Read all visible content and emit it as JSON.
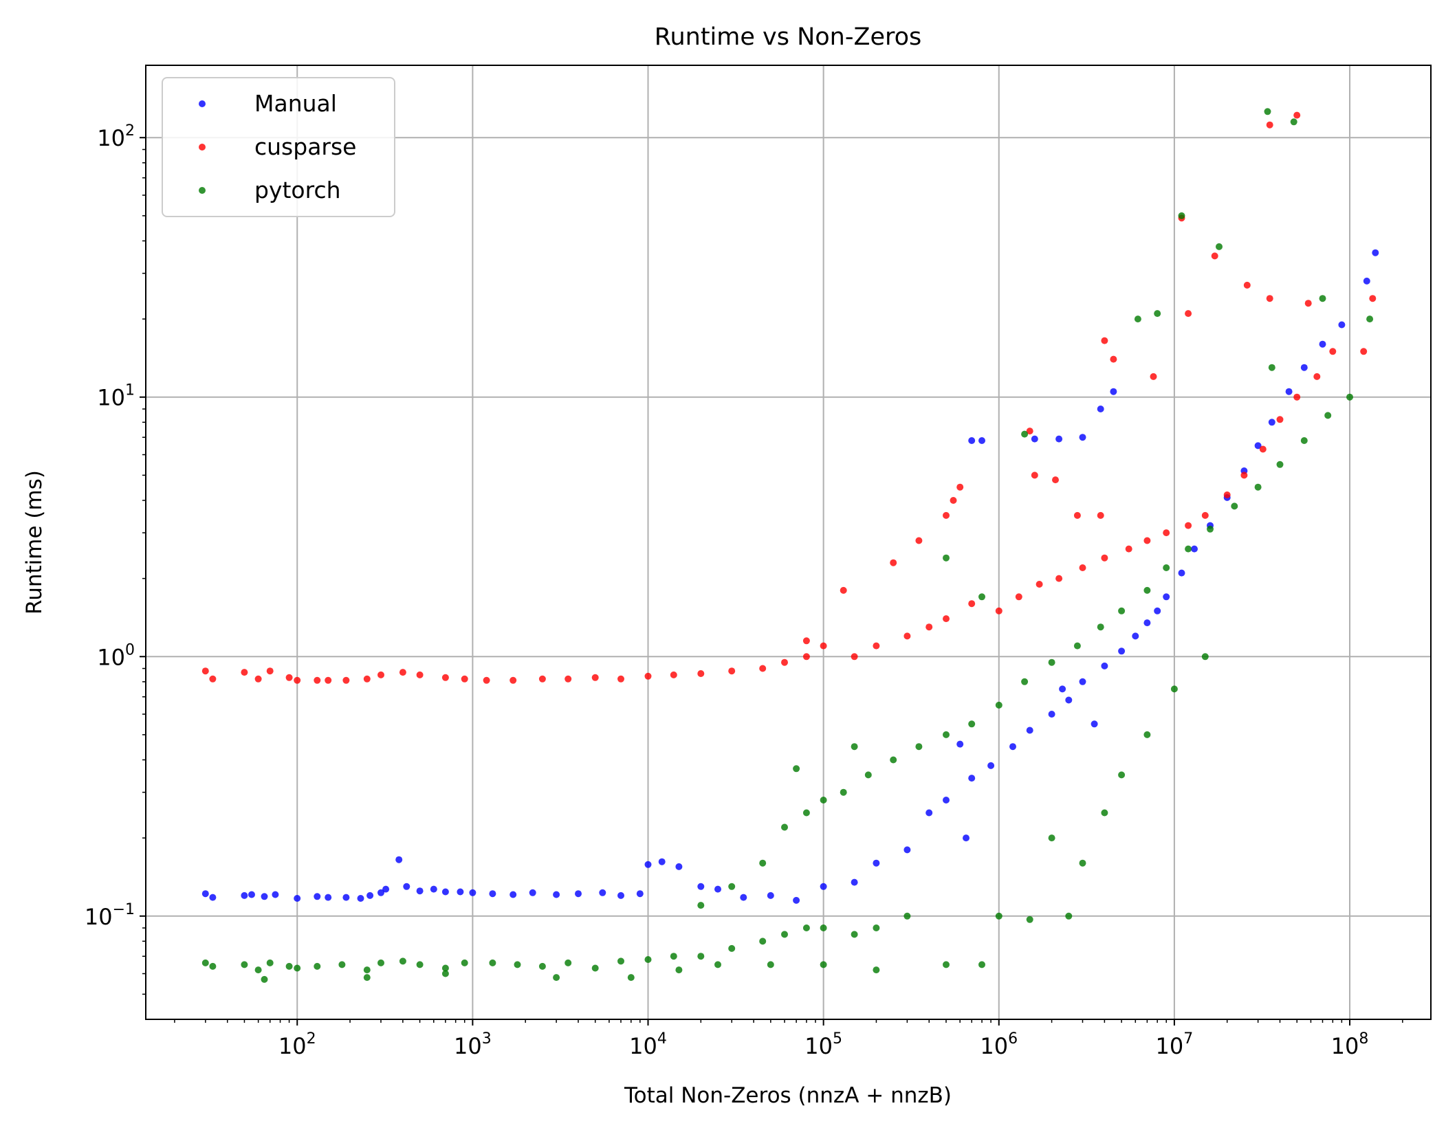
{
  "chart_data": {
    "type": "scatter",
    "title": "Runtime vs Non-Zeros",
    "xlabel": "Total Non-Zeros (nnzA + nnzB)",
    "ylabel": "Runtime (ms)",
    "xscale": "log",
    "yscale": "log",
    "xlim": [
      13.7,
      290000000
    ],
    "ylim": [
      0.04,
      190
    ],
    "xticks": [
      {
        "value": 100,
        "base": "10",
        "exp": "2"
      },
      {
        "value": 1000,
        "base": "10",
        "exp": "3"
      },
      {
        "value": 10000,
        "base": "10",
        "exp": "4"
      },
      {
        "value": 100000,
        "base": "10",
        "exp": "5"
      },
      {
        "value": 1000000,
        "base": "10",
        "exp": "6"
      },
      {
        "value": 10000000,
        "base": "10",
        "exp": "7"
      },
      {
        "value": 100000000,
        "base": "10",
        "exp": "8"
      }
    ],
    "yticks": [
      {
        "value": 0.1,
        "base": "10",
        "exp": "−1"
      },
      {
        "value": 1,
        "base": "10",
        "exp": "0"
      },
      {
        "value": 10,
        "base": "10",
        "exp": "1"
      },
      {
        "value": 100,
        "base": "10",
        "exp": "2"
      }
    ],
    "grid": true,
    "legend_position": "upper left",
    "series": [
      {
        "name": "Manual",
        "color": "#0000ff",
        "points": [
          [
            30,
            0.122
          ],
          [
            33,
            0.118
          ],
          [
            50,
            0.12
          ],
          [
            55,
            0.121
          ],
          [
            65,
            0.119
          ],
          [
            75,
            0.121
          ],
          [
            100,
            0.117
          ],
          [
            130,
            0.119
          ],
          [
            150,
            0.118
          ],
          [
            190,
            0.118
          ],
          [
            230,
            0.117
          ],
          [
            260,
            0.12
          ],
          [
            300,
            0.123
          ],
          [
            320,
            0.127
          ],
          [
            380,
            0.165
          ],
          [
            420,
            0.13
          ],
          [
            500,
            0.125
          ],
          [
            600,
            0.127
          ],
          [
            700,
            0.124
          ],
          [
            850,
            0.124
          ],
          [
            1000,
            0.123
          ],
          [
            1300,
            0.122
          ],
          [
            1700,
            0.121
          ],
          [
            2200,
            0.123
          ],
          [
            3000,
            0.121
          ],
          [
            4000,
            0.122
          ],
          [
            5500,
            0.123
          ],
          [
            7000,
            0.12
          ],
          [
            9000,
            0.122
          ],
          [
            10000,
            0.158
          ],
          [
            12000,
            0.162
          ],
          [
            15000,
            0.155
          ],
          [
            20000,
            0.13
          ],
          [
            25000,
            0.127
          ],
          [
            35000,
            0.118
          ],
          [
            50000,
            0.12
          ],
          [
            70000,
            0.115
          ],
          [
            100000,
            0.13
          ],
          [
            150000,
            0.135
          ],
          [
            200000,
            0.16
          ],
          [
            300000,
            0.18
          ],
          [
            400000,
            0.25
          ],
          [
            500000,
            0.28
          ],
          [
            700000,
            0.34
          ],
          [
            900000,
            0.38
          ],
          [
            1200000,
            0.45
          ],
          [
            1500000,
            0.52
          ],
          [
            2000000,
            0.6
          ],
          [
            2500000,
            0.68
          ],
          [
            3000000,
            0.8
          ],
          [
            4000000,
            0.92
          ],
          [
            5000000,
            1.05
          ],
          [
            6000000,
            1.2
          ],
          [
            7000000,
            1.35
          ],
          [
            8000000,
            1.5
          ],
          [
            9000000,
            1.7
          ],
          [
            11000000,
            2.1
          ],
          [
            13000000,
            2.6
          ],
          [
            16000000,
            3.2
          ],
          [
            20000000,
            4.1
          ],
          [
            25000000,
            5.2
          ],
          [
            30000000,
            6.5
          ],
          [
            36000000,
            8.0
          ],
          [
            45000000,
            10.5
          ],
          [
            55000000,
            13
          ],
          [
            70000000,
            16
          ],
          [
            90000000,
            19
          ],
          [
            125000000,
            28
          ],
          [
            140000000,
            36
          ],
          [
            700000,
            6.8
          ],
          [
            800000,
            6.8
          ],
          [
            1600000,
            6.9
          ],
          [
            2200000,
            6.9
          ],
          [
            3000000,
            7.0
          ],
          [
            3800000,
            9.0
          ],
          [
            4500000,
            10.5
          ],
          [
            650000,
            0.2
          ],
          [
            2300000,
            0.75
          ],
          [
            600000,
            0.46
          ],
          [
            3500000,
            0.55
          ]
        ]
      },
      {
        "name": "cusparse",
        "color": "#ff0000",
        "points": [
          [
            30,
            0.88
          ],
          [
            33,
            0.82
          ],
          [
            50,
            0.87
          ],
          [
            60,
            0.82
          ],
          [
            70,
            0.88
          ],
          [
            90,
            0.83
          ],
          [
            100,
            0.81
          ],
          [
            130,
            0.81
          ],
          [
            150,
            0.81
          ],
          [
            190,
            0.81
          ],
          [
            250,
            0.82
          ],
          [
            300,
            0.85
          ],
          [
            400,
            0.87
          ],
          [
            500,
            0.85
          ],
          [
            700,
            0.83
          ],
          [
            900,
            0.82
          ],
          [
            1200,
            0.81
          ],
          [
            1700,
            0.81
          ],
          [
            2500,
            0.82
          ],
          [
            3500,
            0.82
          ],
          [
            5000,
            0.83
          ],
          [
            7000,
            0.82
          ],
          [
            10000,
            0.84
          ],
          [
            14000,
            0.85
          ],
          [
            20000,
            0.86
          ],
          [
            30000,
            0.88
          ],
          [
            45000,
            0.9
          ],
          [
            60000,
            0.95
          ],
          [
            80000,
            1.0
          ],
          [
            100000,
            1.1
          ],
          [
            150000,
            1.0
          ],
          [
            200000,
            1.1
          ],
          [
            300000,
            1.2
          ],
          [
            400000,
            1.3
          ],
          [
            500000,
            1.4
          ],
          [
            700000,
            1.6
          ],
          [
            1000000,
            1.5
          ],
          [
            1300000,
            1.7
          ],
          [
            1700000,
            1.9
          ],
          [
            2200000,
            2.0
          ],
          [
            3000000,
            2.2
          ],
          [
            4000000,
            2.4
          ],
          [
            5500000,
            2.6
          ],
          [
            7000000,
            2.8
          ],
          [
            9000000,
            3.0
          ],
          [
            12000000,
            3.2
          ],
          [
            15000000,
            3.5
          ],
          [
            20000000,
            4.2
          ],
          [
            25000000,
            5.0
          ],
          [
            32000000,
            6.3
          ],
          [
            40000000,
            8.2
          ],
          [
            50000000,
            10
          ],
          [
            65000000,
            12
          ],
          [
            80000000,
            15
          ],
          [
            120000000,
            15
          ],
          [
            135000000,
            24
          ],
          [
            35000000,
            112
          ],
          [
            50000000,
            122
          ],
          [
            11000000,
            49
          ],
          [
            17000000,
            35
          ],
          [
            26000000,
            27
          ],
          [
            12000000,
            21
          ],
          [
            35000000,
            24
          ],
          [
            58000000,
            23
          ],
          [
            4000000,
            16.5
          ],
          [
            4500000,
            14
          ],
          [
            7600000,
            12
          ],
          [
            600000,
            4.5
          ],
          [
            1600000,
            5.0
          ],
          [
            2100000,
            4.8
          ],
          [
            2800000,
            3.5
          ],
          [
            550000,
            4.0
          ],
          [
            130000,
            1.8
          ],
          [
            250000,
            2.3
          ],
          [
            350000,
            2.8
          ],
          [
            500000,
            3.5
          ],
          [
            80000,
            1.15
          ],
          [
            1500000,
            7.4
          ],
          [
            3800000,
            3.5
          ]
        ]
      },
      {
        "name": "pytorch",
        "color": "#007a00",
        "points": [
          [
            30,
            0.066
          ],
          [
            33,
            0.064
          ],
          [
            50,
            0.065
          ],
          [
            60,
            0.062
          ],
          [
            70,
            0.066
          ],
          [
            90,
            0.064
          ],
          [
            100,
            0.063
          ],
          [
            130,
            0.064
          ],
          [
            180,
            0.065
          ],
          [
            250,
            0.062
          ],
          [
            300,
            0.066
          ],
          [
            400,
            0.067
          ],
          [
            500,
            0.065
          ],
          [
            700,
            0.063
          ],
          [
            900,
            0.066
          ],
          [
            1300,
            0.066
          ],
          [
            1800,
            0.065
          ],
          [
            2500,
            0.064
          ],
          [
            3500,
            0.066
          ],
          [
            5000,
            0.063
          ],
          [
            7000,
            0.067
          ],
          [
            10000,
            0.068
          ],
          [
            14000,
            0.07
          ],
          [
            20000,
            0.07
          ],
          [
            30000,
            0.075
          ],
          [
            45000,
            0.08
          ],
          [
            60000,
            0.085
          ],
          [
            80000,
            0.09
          ],
          [
            100000,
            0.09
          ],
          [
            150000,
            0.085
          ],
          [
            200000,
            0.09
          ],
          [
            300000,
            0.1
          ],
          [
            65,
            0.057
          ],
          [
            250,
            0.058
          ],
          [
            700,
            0.06
          ],
          [
            3000,
            0.058
          ],
          [
            8000,
            0.058
          ],
          [
            15000,
            0.062
          ],
          [
            25000,
            0.065
          ],
          [
            50000,
            0.065
          ],
          [
            100000,
            0.065
          ],
          [
            200000,
            0.062
          ],
          [
            500000,
            0.065
          ],
          [
            800000,
            0.065
          ],
          [
            20000,
            0.11
          ],
          [
            30000,
            0.13
          ],
          [
            45000,
            0.16
          ],
          [
            60000,
            0.22
          ],
          [
            80000,
            0.25
          ],
          [
            100000,
            0.28
          ],
          [
            130000,
            0.3
          ],
          [
            180000,
            0.35
          ],
          [
            250000,
            0.4
          ],
          [
            350000,
            0.45
          ],
          [
            500000,
            0.5
          ],
          [
            700000,
            0.55
          ],
          [
            1000000,
            0.65
          ],
          [
            1400000,
            0.8
          ],
          [
            2000000,
            0.95
          ],
          [
            2800000,
            1.1
          ],
          [
            3800000,
            1.3
          ],
          [
            5000000,
            1.5
          ],
          [
            7000000,
            1.8
          ],
          [
            9000000,
            2.2
          ],
          [
            12000000,
            2.6
          ],
          [
            16000000,
            3.1
          ],
          [
            22000000,
            3.8
          ],
          [
            30000000,
            4.5
          ],
          [
            40000000,
            5.5
          ],
          [
            55000000,
            6.8
          ],
          [
            75000000,
            8.5
          ],
          [
            100000000,
            10
          ],
          [
            130000000,
            20
          ],
          [
            70000,
            0.37
          ],
          [
            150000,
            0.45
          ],
          [
            2000000,
            0.2
          ],
          [
            3000000,
            0.16
          ],
          [
            4000000,
            0.25
          ],
          [
            5000000,
            0.35
          ],
          [
            7000000,
            0.5
          ],
          [
            10000000,
            0.75
          ],
          [
            15000000,
            1.0
          ],
          [
            1000000,
            0.1
          ],
          [
            1500000,
            0.097
          ],
          [
            2500000,
            0.1
          ],
          [
            34000000,
            126
          ],
          [
            48000000,
            115
          ],
          [
            11000000,
            50
          ],
          [
            18000000,
            38
          ],
          [
            8000000,
            21
          ],
          [
            6200000,
            20
          ],
          [
            70000000,
            24
          ],
          [
            36000000,
            13
          ],
          [
            500000,
            2.4
          ],
          [
            1400000,
            7.2
          ],
          [
            800000,
            1.7
          ]
        ]
      }
    ]
  }
}
